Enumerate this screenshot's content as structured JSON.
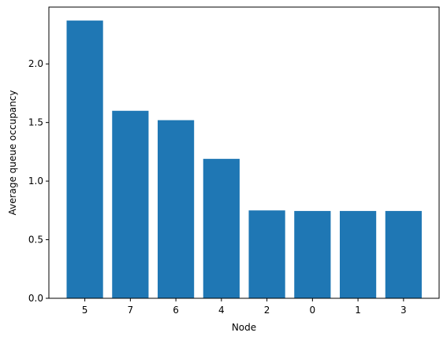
{
  "chart_data": {
    "type": "bar",
    "categories": [
      "5",
      "7",
      "6",
      "4",
      "2",
      "0",
      "1",
      "3"
    ],
    "values": [
      2.37,
      1.6,
      1.52,
      1.19,
      0.75,
      0.745,
      0.745,
      0.745
    ],
    "title": "",
    "xlabel": "Node",
    "ylabel": "Average queue occupancy",
    "ylim": [
      0,
      2.485
    ],
    "yticks": [
      "0.0",
      "0.5",
      "1.0",
      "1.5",
      "2.0"
    ],
    "grid": false,
    "bar_color": "#1f77b4"
  }
}
